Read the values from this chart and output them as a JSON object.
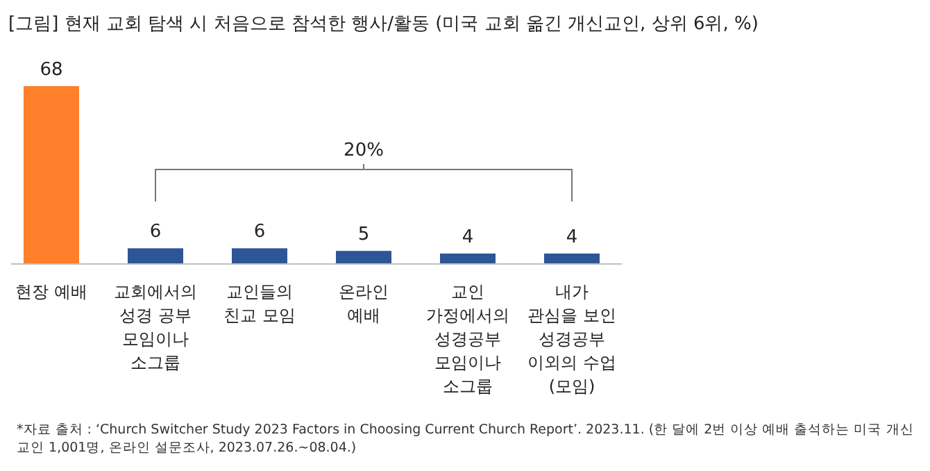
{
  "chart_data": {
    "type": "bar",
    "title": "[그림] 현재 교회 탐색 시 처음으로 참석한 행사/활동 (미국 교회 옮긴 개신교인, 상위 6위, %)",
    "categories": [
      "현장 예배",
      "교회에서의\n성경 공부\n모임이나\n소그룹",
      "교인들의\n친교 모임",
      "온라인\n예배",
      "교인\n가정에서의\n성경공부\n모임이나\n소그룹",
      "내가\n관심을 보인\n성경공부\n이외의 수업\n(모임)"
    ],
    "values": [
      68,
      6,
      6,
      5,
      4,
      4
    ],
    "colors": [
      "#ff7f2a",
      "#2e5597",
      "#2e5597",
      "#2e5597",
      "#2e5597",
      "#2e5597"
    ],
    "data_labels": true,
    "annotations": [
      "20%",
      "*자료 출처 : ‘Church Switcher Study 2023 Factors in Choosing Current Church Report’. 2023.11. (한 달에 2번 이상 예배 출석하는 미국 개신교인 1,001명, 온라인 설문조사, 2023.07.26.~08.04.)"
    ]
  }
}
